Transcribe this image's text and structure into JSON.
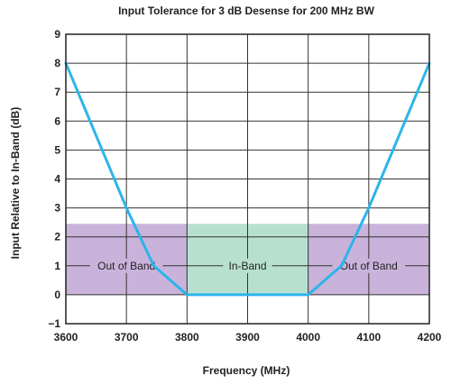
{
  "chart_data": {
    "type": "line",
    "title": "Input Tolerance for 3 dB Desense for 200 MHz BW",
    "xlabel": "Frequency (MHz)",
    "ylabel": "Input Relative to In-Band (dB)",
    "xlim": [
      3600,
      4200
    ],
    "ylim": [
      -1,
      9
    ],
    "xticks": [
      3600,
      3700,
      3800,
      3900,
      4000,
      4100,
      4200
    ],
    "yticks": [
      -1,
      0,
      1,
      2,
      3,
      4,
      5,
      6,
      7,
      8,
      9
    ],
    "grid": true,
    "series": [
      {
        "x": [
          3600,
          3700,
          3745,
          3800,
          4000,
          4055,
          4100,
          4200
        ],
        "y": [
          8,
          3,
          1,
          0,
          0,
          1,
          3,
          8
        ],
        "color": "#2bb5ea"
      }
    ],
    "regions": [
      {
        "label": "Out of Band",
        "x": [
          3600,
          3800
        ],
        "y": [
          0,
          2.45
        ],
        "color": "#c9b3db"
      },
      {
        "label": "In-Band",
        "x": [
          3800,
          4000
        ],
        "y": [
          0,
          2.45
        ],
        "color": "#b8e0cf"
      },
      {
        "label": "Out of Band",
        "x": [
          4000,
          4200
        ],
        "y": [
          0,
          2.45
        ],
        "color": "#c9b3db"
      }
    ]
  }
}
